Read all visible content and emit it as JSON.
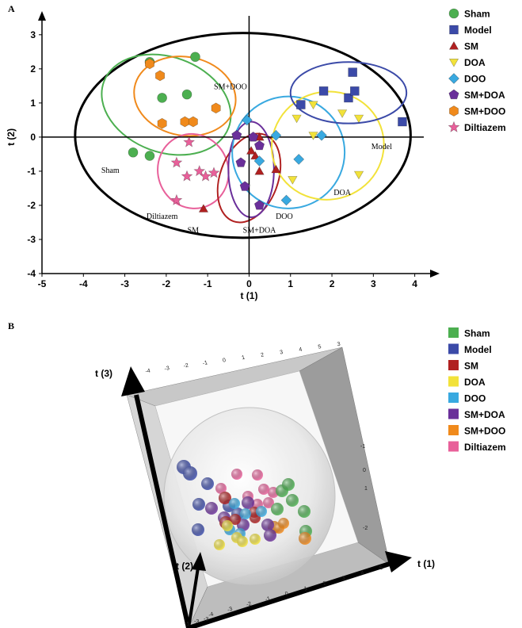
{
  "panels": {
    "a": "A",
    "b": "B"
  },
  "colors": {
    "Sham": "#4caf50",
    "Model": "#3b4aa8",
    "SM": "#b02020",
    "DOA": "#f2e23a",
    "DOO": "#39a9e0",
    "SM+DOA": "#6a2f9a",
    "SM+DOO": "#f08a1c",
    "Diltiazem": "#e8609a"
  },
  "legend_a": [
    {
      "name": "Sham",
      "marker": "circle"
    },
    {
      "name": "Model",
      "marker": "square"
    },
    {
      "name": "SM",
      "marker": "triangle-up"
    },
    {
      "name": "DOA",
      "marker": "triangle-down"
    },
    {
      "name": "DOO",
      "marker": "diamond"
    },
    {
      "name": "SM+DOA",
      "marker": "pentagon"
    },
    {
      "name": "SM+DOO",
      "marker": "hexagon"
    },
    {
      "name": "Diltiazem",
      "marker": "star"
    }
  ],
  "legend_b": [
    "Sham",
    "Model",
    "SM",
    "DOA",
    "DOO",
    "SM+DOA",
    "SM+DOO",
    "Diltiazem"
  ],
  "chart_data": [
    {
      "type": "scatter",
      "xlabel": "t (1)",
      "ylabel": "t (2)",
      "xlim": [
        -5,
        4.6
      ],
      "ylim": [
        -4,
        3.6
      ],
      "xticks": [
        "-5",
        "-4",
        "-3",
        "-2",
        "-1",
        "0",
        "1",
        "2",
        "3",
        "4"
      ],
      "yticks": [
        "-4",
        "-3",
        "-2",
        "-1",
        "0",
        "1",
        "2",
        "3"
      ],
      "hotelling_ellipse": {
        "cx": -0.15,
        "cy": 0.05,
        "rx": 4.05,
        "ry": 3.0
      },
      "series": [
        {
          "name": "Sham",
          "points": [
            [
              -2.4,
              2.2
            ],
            [
              -1.3,
              2.35
            ],
            [
              -2.1,
              1.15
            ],
            [
              -1.5,
              1.25
            ],
            [
              -2.8,
              -0.45
            ],
            [
              -2.4,
              -0.55
            ]
          ]
        },
        {
          "name": "Model",
          "points": [
            [
              1.25,
              0.95
            ],
            [
              1.8,
              1.35
            ],
            [
              2.4,
              1.15
            ],
            [
              2.55,
              1.35
            ],
            [
              2.5,
              1.9
            ],
            [
              3.7,
              0.45
            ]
          ]
        },
        {
          "name": "SM",
          "points": [
            [
              0.05,
              -0.4
            ],
            [
              0.15,
              -0.55
            ],
            [
              0.25,
              0.0
            ],
            [
              0.25,
              -1.0
            ],
            [
              0.65,
              -0.95
            ],
            [
              -1.1,
              -2.1
            ]
          ]
        },
        {
          "name": "DOA",
          "points": [
            [
              1.15,
              0.55
            ],
            [
              1.55,
              0.95
            ],
            [
              1.55,
              0.05
            ],
            [
              2.25,
              0.7
            ],
            [
              2.65,
              0.55
            ],
            [
              2.65,
              -1.1
            ],
            [
              1.05,
              -1.25
            ]
          ]
        },
        {
          "name": "DOO",
          "points": [
            [
              -0.05,
              0.5
            ],
            [
              0.65,
              0.05
            ],
            [
              1.75,
              0.05
            ],
            [
              1.2,
              -0.65
            ],
            [
              0.25,
              -0.7
            ],
            [
              0.9,
              -1.85
            ]
          ]
        },
        {
          "name": "SM+DOA",
          "points": [
            [
              -0.3,
              0.05
            ],
            [
              0.1,
              0.0
            ],
            [
              0.25,
              -0.25
            ],
            [
              -0.2,
              -0.75
            ],
            [
              -0.1,
              -1.45
            ],
            [
              0.25,
              -2.0
            ]
          ]
        },
        {
          "name": "SM+DOO",
          "points": [
            [
              -2.15,
              1.8
            ],
            [
              -2.4,
              2.15
            ],
            [
              -0.8,
              0.85
            ],
            [
              -2.1,
              0.4
            ],
            [
              -1.55,
              0.45
            ],
            [
              -1.35,
              0.45
            ]
          ]
        },
        {
          "name": "Diltiazem",
          "points": [
            [
              -1.45,
              -0.15
            ],
            [
              -1.75,
              -0.75
            ],
            [
              -1.2,
              -1.0
            ],
            [
              -1.05,
              -1.15
            ],
            [
              -0.85,
              -1.05
            ],
            [
              -1.5,
              -1.15
            ],
            [
              -1.75,
              -1.85
            ]
          ]
        }
      ],
      "group_ellipses": [
        {
          "name": "Sham",
          "cx": -2.0,
          "cy": 0.95,
          "rx": 1.15,
          "ry": 1.95,
          "rot": -70
        },
        {
          "name": "SM+DOO",
          "cx": -1.55,
          "cy": 1.2,
          "rx": 0.95,
          "ry": 1.5,
          "rot": -80
        },
        {
          "name": "Diltiazem",
          "cx": -1.35,
          "cy": -1.0,
          "rx": 0.85,
          "ry": 1.1,
          "rot": -20
        },
        {
          "name": "SM",
          "cx": 0.0,
          "cy": -1.2,
          "rx": 0.7,
          "ry": 1.35,
          "rot": 20
        },
        {
          "name": "SM+DOA",
          "cx": 0.05,
          "cy": -0.95,
          "rx": 0.55,
          "ry": 1.4,
          "rot": 0
        },
        {
          "name": "DOO",
          "cx": 0.95,
          "cy": -0.45,
          "rx": 1.35,
          "ry": 1.65,
          "rot": 80
        },
        {
          "name": "DOA",
          "cx": 1.9,
          "cy": -0.25,
          "rx": 1.3,
          "ry": 1.65,
          "rot": 75
        },
        {
          "name": "Model",
          "cx": 2.4,
          "cy": 1.3,
          "rx": 1.4,
          "ry": 0.9,
          "rot": 0
        }
      ],
      "group_labels": [
        {
          "text": "Sham",
          "x": -3.35,
          "y": -1.05
        },
        {
          "text": "SM+DOO",
          "x": -0.45,
          "y": 1.4
        },
        {
          "text": "Diltiazem",
          "x": -2.1,
          "y": -2.4
        },
        {
          "text": "SM",
          "x": -1.35,
          "y": -2.8
        },
        {
          "text": "SM+DOA",
          "x": 0.25,
          "y": -2.8
        },
        {
          "text": "DOO",
          "x": 0.85,
          "y": -2.4
        },
        {
          "text": "DOA",
          "x": 2.25,
          "y": -1.7
        },
        {
          "text": "Model",
          "x": 3.2,
          "y": -0.35
        }
      ]
    },
    {
      "type": "scatter-3d",
      "axis_labels": {
        "x": "t (1)",
        "y": "t (2)",
        "z": "t (3)"
      },
      "top_ticks": [
        "-4",
        "-3",
        "-2",
        "-1",
        "0",
        "1",
        "2",
        "3",
        "4",
        "5",
        "3"
      ],
      "right_ticks": [
        "-1",
        "0",
        "1",
        "-2"
      ],
      "bottom_ticks": [
        "-4",
        "-3",
        "-2",
        "-1",
        "0",
        "1",
        "2",
        "3",
        "4",
        "5"
      ],
      "corner_ticks": [
        "-5",
        "-3",
        "-3"
      ]
    }
  ]
}
